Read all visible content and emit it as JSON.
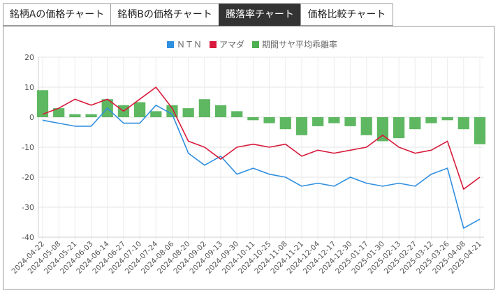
{
  "tabs": [
    {
      "label": "銘柄Aの価格チャート",
      "active": false
    },
    {
      "label": "銘柄Bの価格チャート",
      "active": false
    },
    {
      "label": "騰落率チャート",
      "active": true
    },
    {
      "label": "価格比較チャート",
      "active": false
    }
  ],
  "colors": {
    "ntn": "#2f8fe0",
    "amada": "#d81b3c",
    "spread": "#4caf50",
    "tab_active_bg": "#333333"
  },
  "chart_data": {
    "type": "line",
    "legend": [
      "ＮＴＮ",
      "アマダ",
      "期間サヤ平均乖離率"
    ],
    "legend_position": "top-center",
    "ylim": [
      -40,
      20
    ],
    "yticks": [
      "20",
      "10",
      "0",
      "-10",
      "-20",
      "-30",
      "-40"
    ],
    "grid": true,
    "x_tick_labels": [
      "2024-04-22",
      "2024-05-08",
      "2024-05-21",
      "2024-06-03",
      "2024-06-14",
      "2024-06-27",
      "2024-07-10",
      "2024-07-24",
      "2024-08-06",
      "2024-08-20",
      "2024-09-02",
      "2024-09-13",
      "2024-09-30",
      "2024-10-11",
      "2024-10-25",
      "2024-11-08",
      "2024-11-21",
      "2024-12-04",
      "2024-12-17",
      "2024-12-30",
      "2025-01-17",
      "2025-01-30",
      "2025-02-13",
      "2025-02-27",
      "2025-03-12",
      "2025-03-26",
      "2025-04-08",
      "2025-04-21"
    ],
    "series": [
      {
        "name": "ＮＴＮ",
        "kind": "line",
        "points": [
          [
            0,
            -1
          ],
          [
            1,
            -2
          ],
          [
            2,
            -3
          ],
          [
            3,
            -3
          ],
          [
            4,
            3
          ],
          [
            5,
            -2
          ],
          [
            6,
            -2
          ],
          [
            7,
            4
          ],
          [
            8,
            1
          ],
          [
            9,
            -12
          ],
          [
            10,
            -16
          ],
          [
            11,
            -13
          ],
          [
            12,
            -19
          ],
          [
            13,
            -17
          ],
          [
            14,
            -19
          ],
          [
            15,
            -20
          ],
          [
            16,
            -23
          ],
          [
            17,
            -22
          ],
          [
            18,
            -23
          ],
          [
            19,
            -20
          ],
          [
            20,
            -22
          ],
          [
            21,
            -23
          ],
          [
            22,
            -22
          ],
          [
            23,
            -23
          ],
          [
            24,
            -19
          ],
          [
            25,
            -17
          ],
          [
            26,
            -37
          ],
          [
            27,
            -34
          ]
        ]
      },
      {
        "name": "アマダ",
        "kind": "line",
        "points": [
          [
            0,
            1
          ],
          [
            1,
            3
          ],
          [
            2,
            6
          ],
          [
            3,
            4
          ],
          [
            4,
            6
          ],
          [
            5,
            2
          ],
          [
            6,
            6
          ],
          [
            7,
            10
          ],
          [
            8,
            3
          ],
          [
            9,
            -8
          ],
          [
            10,
            -10
          ],
          [
            11,
            -14
          ],
          [
            12,
            -10
          ],
          [
            13,
            -9
          ],
          [
            14,
            -10
          ],
          [
            15,
            -9
          ],
          [
            16,
            -13
          ],
          [
            17,
            -11
          ],
          [
            18,
            -12
          ],
          [
            19,
            -11
          ],
          [
            20,
            -10
          ],
          [
            21,
            -6
          ],
          [
            22,
            -10
          ],
          [
            23,
            -12
          ],
          [
            24,
            -11
          ],
          [
            25,
            -8
          ],
          [
            26,
            -24
          ],
          [
            27,
            -20
          ]
        ]
      },
      {
        "name": "期間サヤ平均乖離率",
        "kind": "bar",
        "points": [
          [
            0,
            9
          ],
          [
            1,
            3
          ],
          [
            2,
            1
          ],
          [
            3,
            1
          ],
          [
            4,
            6
          ],
          [
            5,
            4
          ],
          [
            6,
            5
          ],
          [
            7,
            2
          ],
          [
            8,
            4
          ],
          [
            9,
            3
          ],
          [
            10,
            6
          ],
          [
            11,
            4
          ],
          [
            12,
            2
          ],
          [
            13,
            -1
          ],
          [
            14,
            -2
          ],
          [
            15,
            -4
          ],
          [
            16,
            -6
          ],
          [
            17,
            -3
          ],
          [
            18,
            -2
          ],
          [
            19,
            -3
          ],
          [
            20,
            -6
          ],
          [
            21,
            -8
          ],
          [
            22,
            -7
          ],
          [
            23,
            -4
          ],
          [
            24,
            -2
          ],
          [
            25,
            -1
          ],
          [
            26,
            -4
          ],
          [
            27,
            -9
          ]
        ]
      }
    ]
  }
}
